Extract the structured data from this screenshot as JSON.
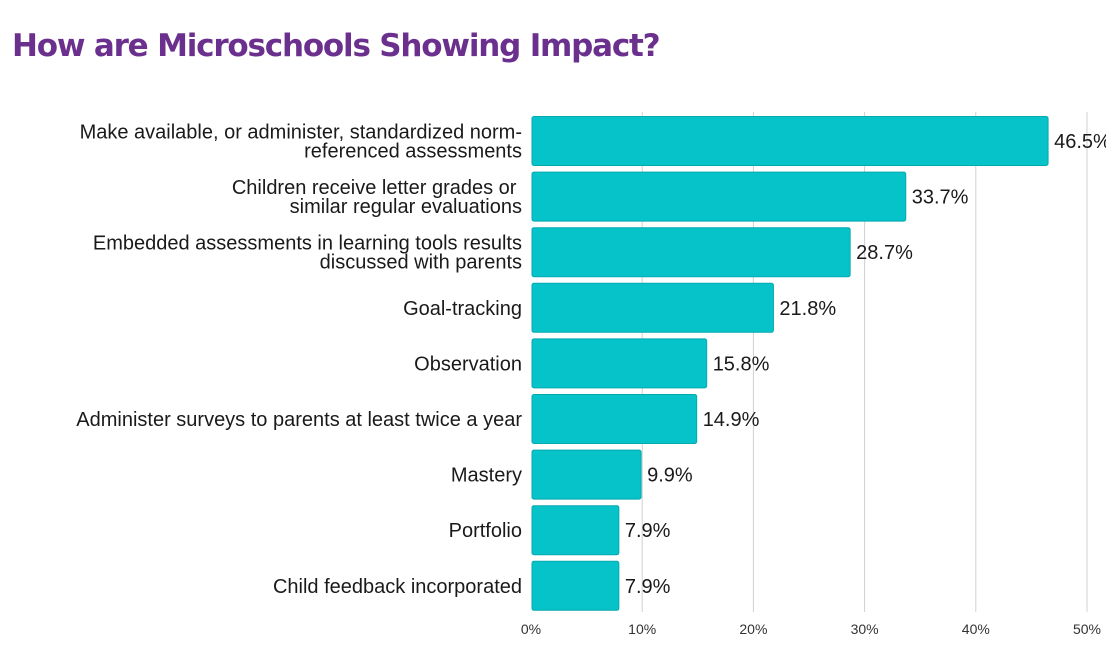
{
  "title": "How are Microschools Showing Impact?",
  "colors": {
    "bar": "#06c2c9",
    "bar_edge": "#04a9b0",
    "title": "#6b2f8e",
    "grid": "#d0d0d0"
  },
  "chart_data": {
    "type": "bar",
    "orientation": "horizontal",
    "title": "How are Microschools Showing Impact?",
    "categories": [
      [
        "Make available, or administer, standardized norm-",
        "referenced assessments"
      ],
      [
        "Children receive letter grades or ",
        "similar regular evaluations"
      ],
      [
        "Embedded assessments in learning tools results",
        "discussed with parents"
      ],
      [
        "Goal-tracking"
      ],
      [
        "Observation"
      ],
      [
        "Administer surveys to parents at least twice a year"
      ],
      [
        "Mastery"
      ],
      [
        "Portfolio"
      ],
      [
        "Child feedback incorporated"
      ]
    ],
    "values": [
      46.5,
      33.7,
      28.7,
      21.8,
      15.8,
      14.9,
      9.9,
      7.9,
      7.9
    ],
    "value_labels": [
      "46.5%",
      "33.7%",
      "28.7%",
      "21.8%",
      "15.8%",
      "14.9%",
      "9.9%",
      "7.9%",
      "7.9%"
    ],
    "xlim": [
      0,
      50
    ],
    "x_ticks": [
      0,
      10,
      20,
      30,
      40,
      50
    ],
    "x_tick_labels": [
      "0%",
      "10%",
      "20%",
      "30%",
      "40%",
      "50%"
    ],
    "xlabel": "",
    "ylabel": "",
    "grid": true,
    "legend": false
  }
}
